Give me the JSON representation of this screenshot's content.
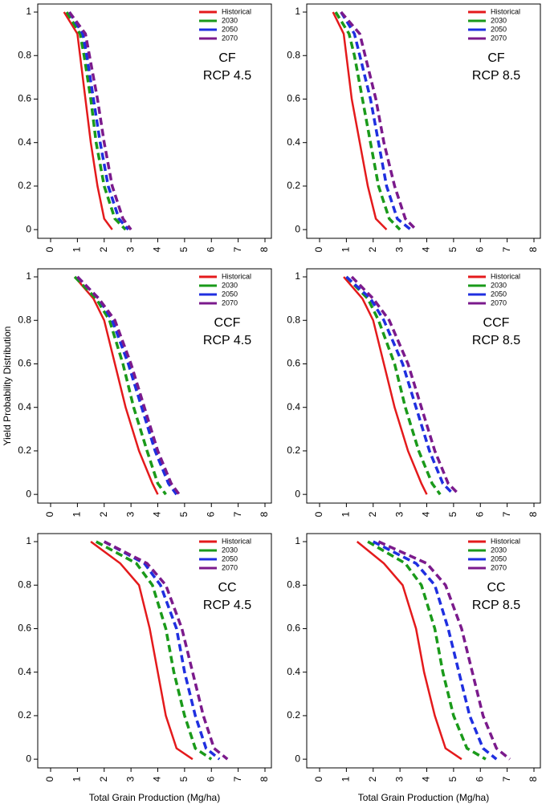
{
  "chart_data": [
    {
      "type": "line",
      "annotation": [
        "CF",
        "RCP 4.5"
      ],
      "xlim": [
        -0.48,
        8.24
      ],
      "ylim": [
        -0.04,
        1.037
      ],
      "xticks": [
        0,
        1,
        2,
        3,
        4,
        5,
        6,
        7,
        8
      ],
      "yticks": [
        0,
        0.2,
        0.4,
        0.6,
        0.8,
        1
      ],
      "legend": "top-right",
      "series": [
        {
          "name": "Historical",
          "color": "#e41a1c",
          "style": "solid",
          "x": [
            0.5,
            1.0,
            1.1,
            1.3,
            1.5,
            1.75,
            2.0,
            2.3
          ],
          "values": [
            1,
            0.9,
            0.8,
            0.6,
            0.4,
            0.2,
            0.05,
            0
          ]
        },
        {
          "name": "2030",
          "color": "#1a9a1a",
          "style": "dashed",
          "x": [
            0.6,
            1.1,
            1.25,
            1.5,
            1.7,
            2.0,
            2.4,
            2.8
          ],
          "values": [
            1,
            0.9,
            0.8,
            0.6,
            0.4,
            0.2,
            0.05,
            0
          ]
        },
        {
          "name": "2050",
          "color": "#1f2fe0",
          "style": "dashed",
          "x": [
            0.7,
            1.2,
            1.35,
            1.6,
            1.85,
            2.15,
            2.55,
            2.9
          ],
          "values": [
            1,
            0.9,
            0.8,
            0.6,
            0.4,
            0.2,
            0.05,
            0
          ]
        },
        {
          "name": "2070",
          "color": "#7b1a8c",
          "style": "dashed",
          "x": [
            0.7,
            1.3,
            1.45,
            1.75,
            2.0,
            2.3,
            2.7,
            3.0
          ],
          "values": [
            1,
            0.9,
            0.8,
            0.6,
            0.4,
            0.2,
            0.05,
            0
          ]
        }
      ]
    },
    {
      "type": "line",
      "annotation": [
        "CF",
        "RCP 8.5"
      ],
      "xlim": [
        -0.48,
        8.24
      ],
      "ylim": [
        -0.04,
        1.037
      ],
      "xticks": [
        0,
        1,
        2,
        3,
        4,
        5,
        6,
        7,
        8
      ],
      "yticks": [
        0,
        0.2,
        0.4,
        0.6,
        0.8,
        1
      ],
      "legend": "top-right",
      "series": [
        {
          "name": "Historical",
          "color": "#e41a1c",
          "style": "solid",
          "x": [
            0.5,
            0.9,
            1.0,
            1.2,
            1.5,
            1.8,
            2.1,
            2.5
          ],
          "values": [
            1,
            0.9,
            0.8,
            0.6,
            0.4,
            0.2,
            0.05,
            0
          ]
        },
        {
          "name": "2030",
          "color": "#1a9a1a",
          "style": "dashed",
          "x": [
            0.6,
            1.1,
            1.3,
            1.6,
            1.9,
            2.2,
            2.6,
            3.0
          ],
          "values": [
            1,
            0.9,
            0.8,
            0.6,
            0.4,
            0.2,
            0.05,
            0
          ]
        },
        {
          "name": "2050",
          "color": "#1f2fe0",
          "style": "dashed",
          "x": [
            0.8,
            1.3,
            1.5,
            1.9,
            2.2,
            2.5,
            2.9,
            3.4
          ],
          "values": [
            1,
            0.9,
            0.8,
            0.6,
            0.4,
            0.2,
            0.05,
            0
          ]
        },
        {
          "name": "2070",
          "color": "#7b1a8c",
          "style": "dashed",
          "x": [
            0.8,
            1.5,
            1.7,
            2.1,
            2.4,
            2.8,
            3.2,
            3.6
          ],
          "values": [
            1,
            0.9,
            0.8,
            0.6,
            0.4,
            0.2,
            0.05,
            0
          ]
        }
      ]
    },
    {
      "type": "line",
      "annotation": [
        "CCF",
        "RCP 4.5"
      ],
      "ylabel": "Yield Probability Distribution",
      "xlim": [
        -0.48,
        8.24
      ],
      "ylim": [
        -0.04,
        1.037
      ],
      "xticks": [
        0,
        1,
        2,
        3,
        4,
        5,
        6,
        7,
        8
      ],
      "yticks": [
        0,
        0.2,
        0.4,
        0.6,
        0.8,
        1
      ],
      "legend": "top-right",
      "series": [
        {
          "name": "Historical",
          "color": "#e41a1c",
          "style": "solid",
          "x": [
            0.9,
            1.6,
            2.0,
            2.4,
            2.8,
            3.3,
            3.8,
            4.0
          ],
          "values": [
            1,
            0.9,
            0.8,
            0.6,
            0.4,
            0.2,
            0.05,
            0
          ]
        },
        {
          "name": "2030",
          "color": "#1a9a1a",
          "style": "dashed",
          "x": [
            0.9,
            1.7,
            2.2,
            2.7,
            3.1,
            3.6,
            4.0,
            4.3
          ],
          "values": [
            1,
            0.9,
            0.8,
            0.6,
            0.4,
            0.2,
            0.05,
            0
          ]
        },
        {
          "name": "2050",
          "color": "#1f2fe0",
          "style": "dashed",
          "x": [
            1.0,
            1.8,
            2.3,
            2.9,
            3.4,
            3.9,
            4.4,
            4.7
          ],
          "values": [
            1,
            0.9,
            0.8,
            0.6,
            0.4,
            0.2,
            0.05,
            0
          ]
        },
        {
          "name": "2070",
          "color": "#7b1a8c",
          "style": "dashed",
          "x": [
            1.0,
            1.8,
            2.4,
            3.0,
            3.5,
            4.0,
            4.5,
            4.8
          ],
          "values": [
            1,
            0.9,
            0.8,
            0.6,
            0.4,
            0.2,
            0.05,
            0
          ]
        }
      ]
    },
    {
      "type": "line",
      "annotation": [
        "CCF",
        "RCP 8.5"
      ],
      "xlim": [
        -0.48,
        8.24
      ],
      "ylim": [
        -0.04,
        1.037
      ],
      "xticks": [
        0,
        1,
        2,
        3,
        4,
        5,
        6,
        7,
        8
      ],
      "yticks": [
        0,
        0.2,
        0.4,
        0.6,
        0.8,
        1
      ],
      "legend": "top-right",
      "series": [
        {
          "name": "Historical",
          "color": "#e41a1c",
          "style": "solid",
          "x": [
            0.9,
            1.6,
            2.0,
            2.4,
            2.8,
            3.3,
            3.8,
            4.0
          ],
          "values": [
            1,
            0.9,
            0.8,
            0.6,
            0.4,
            0.2,
            0.05,
            0
          ]
        },
        {
          "name": "2030",
          "color": "#1a9a1a",
          "style": "dashed",
          "x": [
            1.0,
            1.8,
            2.2,
            2.8,
            3.2,
            3.7,
            4.2,
            4.5
          ],
          "values": [
            1,
            0.9,
            0.8,
            0.6,
            0.4,
            0.2,
            0.05,
            0
          ]
        },
        {
          "name": "2050",
          "color": "#1f2fe0",
          "style": "dashed",
          "x": [
            1.0,
            1.9,
            2.4,
            3.1,
            3.6,
            4.1,
            4.6,
            5.0
          ],
          "values": [
            1,
            0.9,
            0.8,
            0.6,
            0.4,
            0.2,
            0.05,
            0
          ]
        },
        {
          "name": "2070",
          "color": "#7b1a8c",
          "style": "dashed",
          "x": [
            1.2,
            2.0,
            2.6,
            3.3,
            3.8,
            4.3,
            4.8,
            5.2
          ],
          "values": [
            1,
            0.9,
            0.8,
            0.6,
            0.4,
            0.2,
            0.05,
            0
          ]
        }
      ]
    },
    {
      "type": "line",
      "annotation": [
        "CC",
        "RCP 4.5"
      ],
      "xlabel": "Total Grain Production (Mg/ha)",
      "xlim": [
        -0.48,
        8.24
      ],
      "ylim": [
        -0.04,
        1.037
      ],
      "xticks": [
        0,
        1,
        2,
        3,
        4,
        5,
        6,
        7,
        8
      ],
      "yticks": [
        0,
        0.2,
        0.4,
        0.6,
        0.8,
        1
      ],
      "legend": "top-right",
      "series": [
        {
          "name": "Historical",
          "color": "#e41a1c",
          "style": "solid",
          "x": [
            1.5,
            2.6,
            3.3,
            3.7,
            4.0,
            4.3,
            4.7,
            5.3
          ],
          "values": [
            1,
            0.9,
            0.8,
            0.6,
            0.4,
            0.2,
            0.05,
            0
          ]
        },
        {
          "name": "2030",
          "color": "#1a9a1a",
          "style": "dashed",
          "x": [
            1.7,
            3.2,
            3.8,
            4.3,
            4.6,
            5.0,
            5.4,
            6.0
          ],
          "values": [
            1,
            0.9,
            0.8,
            0.6,
            0.4,
            0.2,
            0.05,
            0
          ]
        },
        {
          "name": "2050",
          "color": "#1f2fe0",
          "style": "dashed",
          "x": [
            2.0,
            3.5,
            4.1,
            4.7,
            5.0,
            5.4,
            5.8,
            6.3
          ],
          "values": [
            1,
            0.9,
            0.8,
            0.6,
            0.4,
            0.2,
            0.05,
            0
          ]
        },
        {
          "name": "2070",
          "color": "#7b1a8c",
          "style": "dashed",
          "x": [
            2.0,
            3.6,
            4.3,
            4.9,
            5.3,
            5.7,
            6.1,
            6.6
          ],
          "values": [
            1,
            0.9,
            0.8,
            0.6,
            0.4,
            0.2,
            0.05,
            0
          ]
        }
      ]
    },
    {
      "type": "line",
      "annotation": [
        "CC",
        "RCP 8.5"
      ],
      "xlabel": "Total Grain Production (Mg/ha)",
      "xlim": [
        -0.48,
        8.24
      ],
      "ylim": [
        -0.04,
        1.037
      ],
      "xticks": [
        0,
        1,
        2,
        3,
        4,
        5,
        6,
        7,
        8
      ],
      "yticks": [
        0,
        0.2,
        0.4,
        0.6,
        0.8,
        1
      ],
      "legend": "top-right",
      "series": [
        {
          "name": "Historical",
          "color": "#e41a1c",
          "style": "solid",
          "x": [
            1.4,
            2.4,
            3.1,
            3.6,
            3.9,
            4.3,
            4.7,
            5.3
          ],
          "values": [
            1,
            0.9,
            0.8,
            0.6,
            0.4,
            0.2,
            0.05,
            0
          ]
        },
        {
          "name": "2030",
          "color": "#1a9a1a",
          "style": "dashed",
          "x": [
            1.8,
            3.2,
            3.8,
            4.3,
            4.6,
            5.0,
            5.5,
            6.2
          ],
          "values": [
            1,
            0.9,
            0.8,
            0.6,
            0.4,
            0.2,
            0.05,
            0
          ]
        },
        {
          "name": "2050",
          "color": "#1f2fe0",
          "style": "dashed",
          "x": [
            2.0,
            3.6,
            4.3,
            4.8,
            5.2,
            5.6,
            6.1,
            6.6
          ],
          "values": [
            1,
            0.9,
            0.8,
            0.6,
            0.4,
            0.2,
            0.05,
            0
          ]
        },
        {
          "name": "2070",
          "color": "#7b1a8c",
          "style": "dashed",
          "x": [
            2.2,
            4.0,
            4.7,
            5.3,
            5.7,
            6.1,
            6.6,
            7.1
          ],
          "values": [
            1,
            0.9,
            0.8,
            0.6,
            0.4,
            0.2,
            0.05,
            0
          ]
        }
      ]
    }
  ]
}
